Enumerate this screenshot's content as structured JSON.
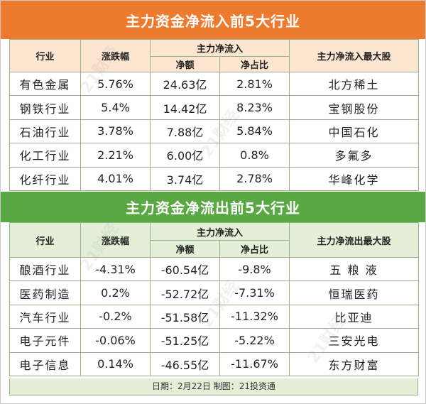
{
  "inflow": {
    "title": "主力资金净流入前5大行业",
    "headers": {
      "industry": "行业",
      "change": "涨跌幅",
      "main_flow": "主力净流入",
      "net_amount": "净额",
      "net_ratio": "净占比",
      "top_stock": "主力净流入最大股"
    },
    "rows": [
      {
        "industry": "有色金属",
        "change": "5.76%",
        "net_amount": "24.63亿",
        "net_ratio": "2.81%",
        "top_stock": "北方稀土"
      },
      {
        "industry": "钢铁行业",
        "change": "5.4%",
        "net_amount": "14.42亿",
        "net_ratio": "8.23%",
        "top_stock": "宝钢股份"
      },
      {
        "industry": "石油行业",
        "change": "3.78%",
        "net_amount": "7.88亿",
        "net_ratio": "5.84%",
        "top_stock": "中国石化"
      },
      {
        "industry": "化工行业",
        "change": "2.21%",
        "net_amount": "6.00亿",
        "net_ratio": "0.8%",
        "top_stock": "多氟多"
      },
      {
        "industry": "化纤行业",
        "change": "4.01%",
        "net_amount": "3.74亿",
        "net_ratio": "2.78%",
        "top_stock": "华峰化学"
      }
    ]
  },
  "outflow": {
    "title": "主力资金净流出前5大行业",
    "headers": {
      "industry": "行业",
      "change": "涨跌幅",
      "main_flow": "主力净流入",
      "net_amount": "净额",
      "net_ratio": "净占比",
      "top_stock": "主力净流出最大股"
    },
    "rows": [
      {
        "industry": "酿酒行业",
        "change": "-4.31%",
        "net_amount": "-60.54亿",
        "net_ratio": "-9.8%",
        "top_stock": "五 粮 液"
      },
      {
        "industry": "医药制造",
        "change": "0.2%",
        "net_amount": "-52.72亿",
        "net_ratio": "-7.31%",
        "top_stock": "恒瑞医药"
      },
      {
        "industry": "汽车行业",
        "change": "-0.2%",
        "net_amount": "-51.58亿",
        "net_ratio": "-11.32%",
        "top_stock": "比亚迪"
      },
      {
        "industry": "电子元件",
        "change": "-0.06%",
        "net_amount": "-51.25亿",
        "net_ratio": "-5.22%",
        "top_stock": "三安光电"
      },
      {
        "industry": "电子信息",
        "change": "0.14%",
        "net_amount": "-46.55亿",
        "net_ratio": "-11.67%",
        "top_stock": "东方财富"
      }
    ]
  },
  "footer": "日期：2月22日  制图：21投资通",
  "watermark": "21财经",
  "colors": {
    "inflow_banner": "#ee7a2e",
    "inflow_header": "#fce5d1",
    "outflow_banner": "#5aa844",
    "outflow_header": "#e3f0d7",
    "grid_line": "#9ab08c"
  }
}
